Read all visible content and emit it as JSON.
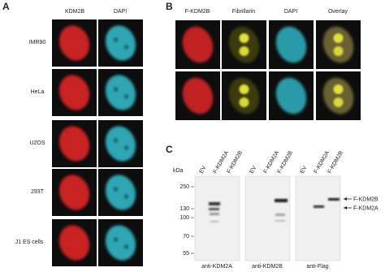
{
  "panel_a": {
    "label": "A",
    "columns": [
      "KDM2B",
      "DAPI"
    ],
    "rows": [
      "IMR90",
      "HeLa",
      "U2OS",
      "293T",
      "J1 ES cells"
    ]
  },
  "panel_b": {
    "label": "B",
    "columns": [
      "F-KDM2B",
      "Fibrillarin",
      "DAPI",
      "Overlay"
    ]
  },
  "panel_c": {
    "label": "C",
    "unit": "kDa",
    "markers": [
      250,
      130,
      100,
      70,
      55
    ],
    "blots": [
      {
        "lanes": [
          "EV",
          "F-KDM2A",
          "F-KDM2B"
        ],
        "antibody": "anti-KDM2A"
      },
      {
        "lanes": [
          "EV",
          "F-KDM2A",
          "F-KDM2B"
        ],
        "antibody": "anti-KDM2B"
      },
      {
        "lanes": [
          "EV",
          "F-KDM2A",
          "F-KDM2B"
        ],
        "antibody": "anti-Flag"
      }
    ],
    "bands": [
      "F-KDM2B",
      "F-KDM2A"
    ]
  }
}
